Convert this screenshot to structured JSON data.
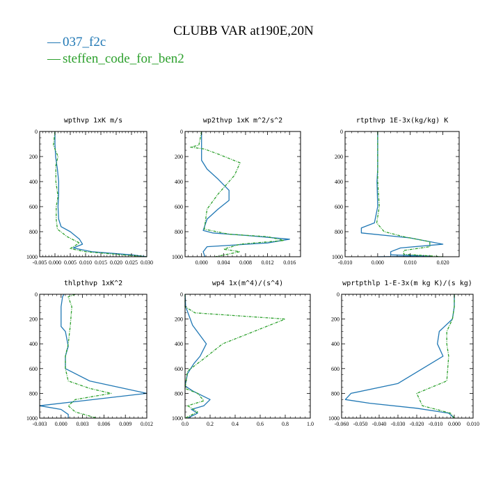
{
  "figure": {
    "title": "CLUBB VAR at190E,20N"
  },
  "legend": [
    {
      "symbol": "—",
      "label": "037_f2c",
      "color": "#1f77b4"
    },
    {
      "symbol": "—",
      "label": "steffen_code_for_ben2",
      "color": "#2ca02c"
    }
  ],
  "chart_data": [
    {
      "type": "line",
      "title": "wpthvp  1xK m/s",
      "xlim": [
        -0.005,
        0.03
      ],
      "xticks": [
        "-0.005",
        "0.000",
        "0.005",
        "0.010",
        "0.015",
        "0.020",
        "0.025",
        "0.030"
      ],
      "xtick_values": [
        -0.005,
        0.0,
        0.005,
        0.01,
        0.015,
        0.02,
        0.025,
        0.03
      ],
      "ylim": [
        0,
        1000
      ],
      "yticks": [
        "0",
        "200",
        "400",
        "600",
        "800",
        "1000"
      ],
      "ytick_values": [
        0,
        200,
        400,
        600,
        800,
        1000
      ],
      "series": [
        {
          "color": "#1f77b4",
          "style": "solid",
          "x": [
            0.0,
            0.0,
            0.0002,
            0.0008,
            0.0012,
            0.0012,
            0.001,
            0.0012,
            0.002,
            0.005,
            0.008,
            0.009,
            0.006,
            0.012,
            0.025,
            0.03
          ],
          "y": [
            0,
            100,
            200,
            300,
            400,
            500,
            600,
            700,
            760,
            800,
            860,
            900,
            930,
            960,
            985,
            1000
          ]
        },
        {
          "color": "#2ca02c",
          "style": "dashed",
          "x": [
            0.0,
            -0.0005,
            0.001,
            0.0003,
            0.0003,
            0.001,
            0.0004,
            0.0004,
            0.0008,
            0.004,
            0.008,
            0.005,
            0.01,
            0.022,
            0.03
          ],
          "y": [
            0,
            110,
            200,
            270,
            400,
            520,
            600,
            700,
            780,
            840,
            890,
            935,
            960,
            985,
            1000
          ]
        }
      ]
    },
    {
      "type": "line",
      "title": "wp2thvp  1xK m^2/s^2",
      "xlim": [
        -0.003,
        0.018
      ],
      "xticks": [
        "0.000",
        "0.004",
        "0.008",
        "0.012",
        "0.016"
      ],
      "xtick_values": [
        0.0,
        0.004,
        0.008,
        0.012,
        0.016
      ],
      "ylim": [
        0,
        1000
      ],
      "yticks": [
        "0",
        "200",
        "400",
        "600",
        "800",
        "1000"
      ],
      "ytick_values": [
        0,
        200,
        400,
        600,
        800,
        1000
      ],
      "series": [
        {
          "color": "#1f77b4",
          "style": "solid",
          "x": [
            0.0,
            0.0,
            0.0,
            0.001,
            0.003,
            0.005,
            0.005,
            0.003,
            0.001,
            0.0003,
            0.002,
            0.008,
            0.016,
            0.012,
            0.001,
            0.0003,
            0.0006
          ],
          "y": [
            0,
            100,
            230,
            300,
            380,
            470,
            550,
            620,
            700,
            790,
            810,
            830,
            860,
            890,
            920,
            960,
            1000
          ]
        },
        {
          "color": "#2ca02c",
          "style": "dashed",
          "x": [
            0.0,
            -0.0005,
            -0.002,
            0.0005,
            0.003,
            0.007,
            0.006,
            0.003,
            0.001,
            0.0005,
            0.005,
            0.012,
            0.015,
            0.007,
            0.004,
            0.007,
            0.0025
          ],
          "y": [
            0,
            110,
            125,
            140,
            180,
            250,
            350,
            500,
            620,
            780,
            820,
            840,
            870,
            900,
            940,
            960,
            1000
          ]
        }
      ]
    },
    {
      "type": "line",
      "title": "rtpthvp  1E-3x(kg/kg) K",
      "xlim": [
        -0.01,
        0.025
      ],
      "xticks": [
        "-0.010",
        "0.000",
        "0.010",
        "0.020"
      ],
      "xtick_values": [
        -0.01,
        0.0,
        0.01,
        0.02
      ],
      "ylim": [
        0,
        1000
      ],
      "yticks": [
        "0",
        "200",
        "400",
        "600",
        "800",
        "1000"
      ],
      "ytick_values": [
        0,
        200,
        400,
        600,
        800,
        1000
      ],
      "series": [
        {
          "color": "#1f77b4",
          "style": "solid",
          "x": [
            0.0,
            0.0,
            0.0,
            -0.0002,
            0.0,
            -0.001,
            -0.005,
            -0.005,
            0.01,
            0.02,
            0.007,
            0.004,
            0.004,
            0.016,
            0.0
          ],
          "y": [
            0,
            100,
            300,
            400,
            600,
            730,
            770,
            810,
            850,
            900,
            930,
            960,
            985,
            995,
            1000
          ]
        },
        {
          "color": "#2ca02c",
          "style": "dashed",
          "x": [
            0.0,
            0.0,
            0.0,
            0.0,
            0.0005,
            -0.0003,
            0.002,
            0.008,
            0.016,
            0.016,
            0.008,
            0.008,
            0.02
          ],
          "y": [
            0,
            100,
            300,
            400,
            600,
            730,
            800,
            840,
            880,
            920,
            950,
            980,
            1000
          ]
        }
      ]
    },
    {
      "type": "line",
      "title": "thlpthvp  1xK^2",
      "xlim": [
        -0.003,
        0.012
      ],
      "xticks": [
        "-0.003",
        "0.000",
        "0.003",
        "0.006",
        "0.009",
        "0.012"
      ],
      "xtick_values": [
        -0.003,
        0.0,
        0.003,
        0.006,
        0.009,
        0.012
      ],
      "ylim": [
        0,
        1000
      ],
      "yticks": [
        "0",
        "200",
        "400",
        "600",
        "800",
        "1000"
      ],
      "ytick_values": [
        0,
        200,
        400,
        600,
        800,
        1000
      ],
      "series": [
        {
          "color": "#1f77b4",
          "style": "solid",
          "x": [
            0.0004,
            0.0002,
            0.0,
            0.0,
            0.0006,
            0.001,
            0.0006,
            0.0006,
            0.004,
            0.012,
            0.006,
            -0.003,
            0.0,
            0.001,
            0.001
          ],
          "y": [
            0,
            20,
            100,
            260,
            300,
            420,
            500,
            600,
            700,
            800,
            840,
            900,
            930,
            970,
            1000
          ]
        },
        {
          "color": "#2ca02c",
          "style": "dashed",
          "x": [
            0.002,
            0.001,
            0.0015,
            0.0013,
            0.001,
            0.0006,
            0.0006,
            0.001,
            0.004,
            0.007,
            0.002,
            0.001,
            0.002,
            0.005
          ],
          "y": [
            0,
            20,
            100,
            250,
            400,
            500,
            600,
            700,
            760,
            800,
            850,
            900,
            950,
            1000
          ]
        }
      ]
    },
    {
      "type": "line",
      "title": "wp4  1x(m^4)/(s^4)",
      "xlim": [
        0.0,
        1.0
      ],
      "xticks": [
        "0.0",
        "0.2",
        "0.4",
        "0.6",
        "0.8",
        "1.0"
      ],
      "xtick_values": [
        0.0,
        0.2,
        0.4,
        0.6,
        0.8,
        1.0
      ],
      "ylim": [
        0,
        1000
      ],
      "yticks": [
        "0",
        "200",
        "400",
        "600",
        "800",
        "1000"
      ],
      "ytick_values": [
        0,
        200,
        400,
        600,
        800,
        1000
      ],
      "series": [
        {
          "color": "#1f77b4",
          "style": "solid",
          "x": [
            0.0,
            0.005,
            0.06,
            0.17,
            0.12,
            0.07,
            0.02,
            0.0,
            0.06,
            0.1,
            0.2,
            0.15,
            0.05,
            0.1,
            0.02
          ],
          "y": [
            0,
            100,
            250,
            400,
            500,
            560,
            640,
            740,
            780,
            800,
            850,
            900,
            930,
            960,
            1000
          ]
        },
        {
          "color": "#2ca02c",
          "style": "dashed",
          "x": [
            0.0,
            0.0,
            0.08,
            0.8,
            0.55,
            0.3,
            0.15,
            0.02,
            0.0,
            0.1,
            0.15,
            0.02,
            0.1,
            0.0
          ],
          "y": [
            0,
            100,
            150,
            200,
            300,
            400,
            520,
            620,
            760,
            800,
            860,
            900,
            950,
            1000
          ]
        }
      ]
    },
    {
      "type": "line",
      "title": "wprtpthlp  1-E-3x(m kg K)/(s kg)",
      "xlim": [
        -0.06,
        0.01
      ],
      "xticks": [
        "-0.060",
        "-0.050",
        "-0.040",
        "-0.030",
        "-0.020",
        "-0.010",
        "0.000",
        "0.010"
      ],
      "xtick_values": [
        -0.06,
        -0.05,
        -0.04,
        -0.03,
        -0.02,
        -0.01,
        0.0,
        0.01
      ],
      "ylim": [
        0,
        1000
      ],
      "yticks": [
        "0",
        "200",
        "400",
        "600",
        "800",
        "1000"
      ],
      "ytick_values": [
        0,
        200,
        400,
        600,
        800,
        1000
      ],
      "series": [
        {
          "color": "#1f77b4",
          "style": "solid",
          "x": [
            0.0,
            0.0,
            -0.001,
            -0.008,
            -0.009,
            -0.006,
            -0.03,
            -0.055,
            -0.058,
            -0.045,
            -0.02,
            -0.003,
            0.0
          ],
          "y": [
            0,
            100,
            200,
            300,
            400,
            500,
            720,
            800,
            850,
            880,
            920,
            960,
            1000
          ]
        },
        {
          "color": "#2ca02c",
          "style": "dashed",
          "x": [
            0.0,
            0.0,
            -0.001,
            -0.004,
            -0.004,
            -0.003,
            -0.004,
            -0.02,
            -0.017,
            -0.002,
            0.0
          ],
          "y": [
            0,
            100,
            200,
            300,
            400,
            500,
            700,
            800,
            900,
            960,
            1000
          ]
        }
      ]
    }
  ]
}
